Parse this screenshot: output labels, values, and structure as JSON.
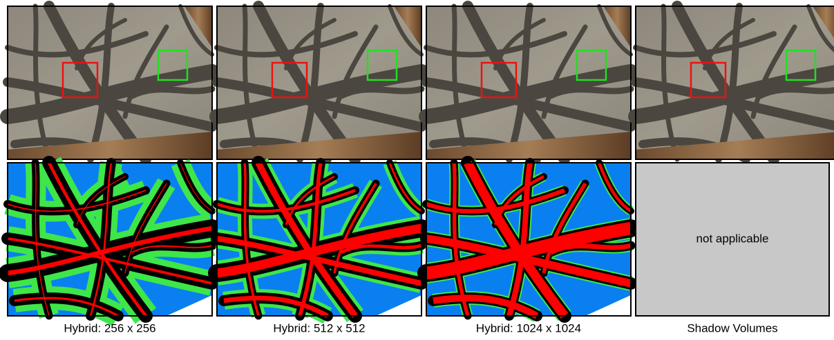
{
  "panels": [
    {
      "caption": "Hybrid: 256 x 256"
    },
    {
      "caption": "Hybrid: 512 x 512"
    },
    {
      "caption": "Hybrid: 1024 x 1024"
    },
    {
      "caption": "Shadow Volumes",
      "note": "not applicable"
    }
  ]
}
